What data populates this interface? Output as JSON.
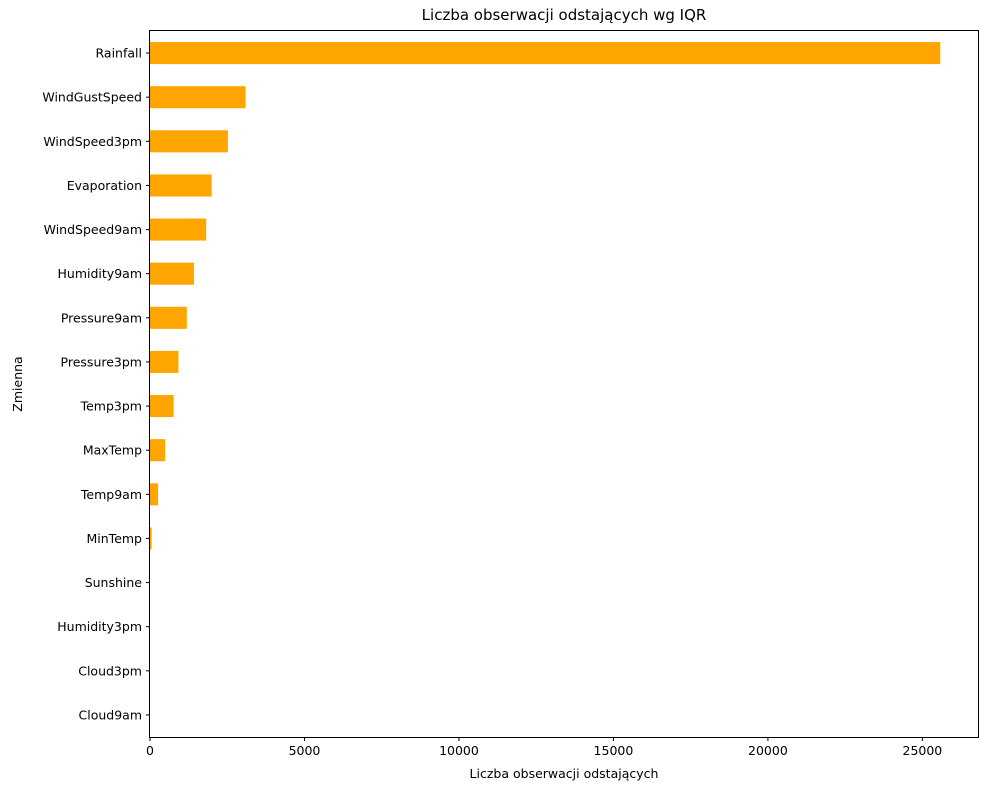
{
  "chart_data": {
    "type": "bar",
    "orientation": "horizontal",
    "title": "Liczba obserwacji odstających wg IQR",
    "xlabel": "Liczba obserwacji odstających",
    "ylabel": "Zmienna",
    "xlim": [
      0,
      26800
    ],
    "xticks": [
      0,
      5000,
      10000,
      15000,
      20000,
      25000
    ],
    "grid": false,
    "legend": "none",
    "bar_color": "#ffa500",
    "categories": [
      "Rainfall",
      "WindGustSpeed",
      "WindSpeed3pm",
      "Evaporation",
      "WindSpeed9am",
      "Humidity9am",
      "Pressure9am",
      "Pressure3pm",
      "Temp3pm",
      "MaxTemp",
      "Temp9am",
      "MinTemp",
      "Sunshine",
      "Humidity3pm",
      "Cloud3pm",
      "Cloud9am"
    ],
    "values": [
      25578,
      3092,
      2523,
      1995,
      1817,
      1425,
      1191,
      919,
      764,
      489,
      262,
      54,
      0,
      0,
      0,
      0
    ]
  }
}
